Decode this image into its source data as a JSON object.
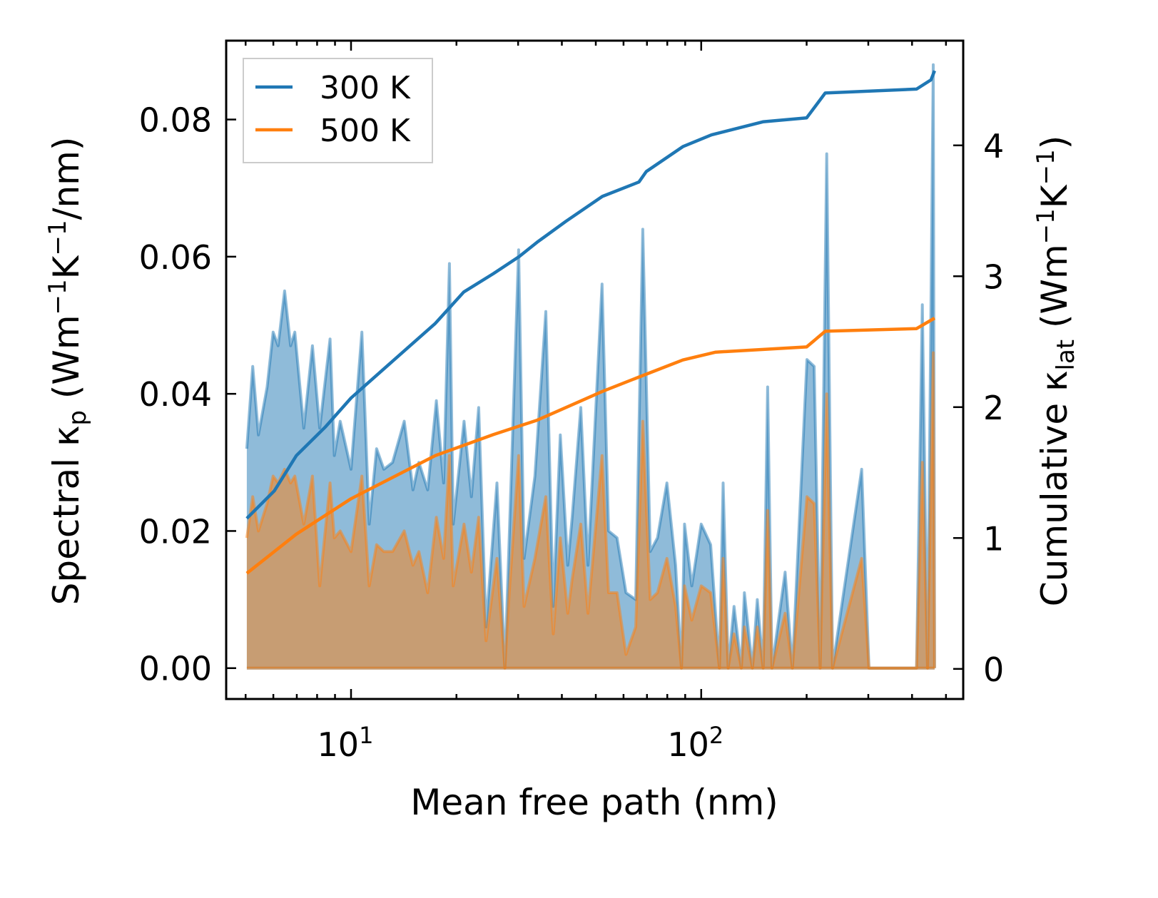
{
  "chart_data": {
    "type": "line",
    "xlabel": "Mean free path (nm)",
    "ylabel_parts": [
      {
        "t": "Spectral κ"
      },
      {
        "t": "p",
        "s": "sub"
      },
      {
        "t": " (Wm"
      },
      {
        "t": "−1",
        "s": "sup"
      },
      {
        "t": "K"
      },
      {
        "t": "−1",
        "s": "sup"
      },
      {
        "t": "/nm)"
      }
    ],
    "y2label_parts": [
      {
        "t": "Cumulative κ"
      },
      {
        "t": "lat",
        "s": "sub"
      },
      {
        "t": " (Wm"
      },
      {
        "t": "−1",
        "s": "sup"
      },
      {
        "t": "K"
      },
      {
        "t": "−1",
        "s": "sup"
      },
      {
        "t": ")"
      }
    ],
    "xscale": "log",
    "xlim": [
      4.4,
      560
    ],
    "ylim": [
      -0.0045,
      0.0915
    ],
    "y2lim": [
      -0.23,
      4.8
    ],
    "xticks": [
      {
        "v": 10,
        "base": "10",
        "exp": "1"
      },
      {
        "v": 100,
        "base": "10",
        "exp": "2"
      }
    ],
    "yticks": [
      {
        "v": 0,
        "label": "0.00"
      },
      {
        "v": 0.02,
        "label": "0.02"
      },
      {
        "v": 0.04,
        "label": "0.04"
      },
      {
        "v": 0.06,
        "label": "0.06"
      },
      {
        "v": 0.08,
        "label": "0.08"
      }
    ],
    "y2ticks": [
      {
        "v": 0,
        "label": "0"
      },
      {
        "v": 1,
        "label": "1"
      },
      {
        "v": 2,
        "label": "2"
      },
      {
        "v": 3,
        "label": "3"
      },
      {
        "v": 4,
        "label": "4"
      }
    ],
    "legend": {
      "placement": "top-left",
      "entries": [
        "300 K",
        "500 K"
      ]
    },
    "colors": {
      "300K": "#1f77b4",
      "500K": "#ff7f0e"
    },
    "x_mfp": [
      5.04,
      5.24,
      5.44,
      5.76,
      5.99,
      6.19,
      6.46,
      6.72,
      6.91,
      7.33,
      7.76,
      8.14,
      8.71,
      8.96,
      9.31,
      10,
      10.74,
      11.27,
      11.83,
      12.41,
      13.14,
      14.19,
      15.03,
      15.62,
      16.55,
      17.53,
      18.39,
      19.1,
      19.58,
      21.03,
      22.07,
      23.15,
      24.29,
      26.1,
      27.5,
      28.3,
      30.1,
      31.2,
      33.5,
      36.0,
      37.8,
      39.6,
      41.6,
      42.8,
      45.3,
      47.5,
      52.1,
      54.4,
      57.5,
      61.0,
      65.0,
      68.1,
      71.5,
      75.0,
      79.8,
      84.5,
      87.8,
      89.6,
      94.0,
      100,
      106.4,
      112.7,
      115.5,
      119.4,
      124.1,
      130.2,
      132.8,
      140,
      144.6,
      150.3,
      154.8,
      159.3,
      173.6,
      182.1,
      200.4,
      210.2,
      218.6,
      228.2,
      237.2,
      287.2,
      301.3,
      412,
      428,
      443,
      459.8,
      464
    ],
    "series": [
      {
        "name": "300 K spectral",
        "values": [
          0.032,
          0.044,
          0.034,
          0.041,
          0.049,
          0.047,
          0.055,
          0.047,
          0.049,
          0.035,
          0.047,
          0.035,
          0.048,
          0.031,
          0.036,
          0.029,
          0.049,
          0.021,
          0.032,
          0.029,
          0.03,
          0.036,
          0.026,
          0.03,
          0.026,
          0.039,
          0.027,
          0.059,
          0.021,
          0.036,
          0.025,
          0.038,
          0.006,
          0.027,
          0.0,
          0.019,
          0.061,
          0.016,
          0.028,
          0.052,
          0.009,
          0.034,
          0.015,
          0.022,
          0.038,
          0.015,
          0.056,
          0.02,
          0.019,
          0.011,
          0.01,
          0.064,
          0.017,
          0.019,
          0.027,
          0.015,
          0.0,
          0.021,
          0.012,
          0.021,
          0.018,
          0.0,
          0.027,
          0.0,
          0.009,
          0.0,
          0.011,
          0.0,
          0.01,
          0.0,
          0.041,
          0.0,
          0.014,
          0.0,
          0.045,
          0.044,
          0.0,
          0.075,
          0.0,
          0.029,
          0.0,
          0.0,
          0.053,
          0.0,
          0.088,
          0.0
        ]
      },
      {
        "name": "500 K spectral",
        "values": [
          0.019,
          0.025,
          0.02,
          0.024,
          0.028,
          0.027,
          0.029,
          0.027,
          0.028,
          0.021,
          0.028,
          0.012,
          0.027,
          0.019,
          0.02,
          0.017,
          0.028,
          0.012,
          0.018,
          0.017,
          0.017,
          0.02,
          0.015,
          0.017,
          0.011,
          0.022,
          0.016,
          0.031,
          0.012,
          0.021,
          0.014,
          0.022,
          0.004,
          0.016,
          0.0,
          0.011,
          0.031,
          0.009,
          0.016,
          0.025,
          0.005,
          0.019,
          0.008,
          0.013,
          0.021,
          0.008,
          0.031,
          0.011,
          0.011,
          0.002,
          0.006,
          0.036,
          0.01,
          0.011,
          0.016,
          0.009,
          0.0,
          0.012,
          0.007,
          0.012,
          0.011,
          0.0,
          0.016,
          0.0,
          0.005,
          0.0,
          0.006,
          0.0,
          0.006,
          0.0,
          0.023,
          0.0,
          0.008,
          0.0,
          0.025,
          0.024,
          0.0,
          0.04,
          0.0,
          0.016,
          0.0,
          0.0,
          0.03,
          0.0,
          0.046,
          0.0
        ]
      },
      {
        "name": "300 K",
        "axis": "right",
        "x": [
          5.04,
          6.04,
          6.98,
          8.46,
          10,
          13.0,
          17.4,
          21.0,
          25.5,
          30.2,
          34.0,
          41.1,
          52.2,
          66.4,
          69.7,
          88.6,
          107,
          150,
          200,
          226,
          412,
          453,
          464
        ],
        "values": [
          1.15,
          1.36,
          1.63,
          1.85,
          2.07,
          2.34,
          2.64,
          2.88,
          3.02,
          3.15,
          3.26,
          3.42,
          3.61,
          3.72,
          3.8,
          3.99,
          4.08,
          4.18,
          4.21,
          4.4,
          4.43,
          4.5,
          4.57
        ]
      },
      {
        "name": "500 K",
        "axis": "right",
        "x": [
          5.04,
          6.98,
          10,
          17.4,
          25.5,
          34.0,
          52.2,
          66.4,
          88.6,
          110,
          200,
          226,
          412,
          464
        ],
        "values": [
          0.73,
          1.03,
          1.3,
          1.63,
          1.79,
          1.9,
          2.12,
          2.23,
          2.36,
          2.42,
          2.46,
          2.58,
          2.6,
          2.68
        ]
      }
    ]
  }
}
